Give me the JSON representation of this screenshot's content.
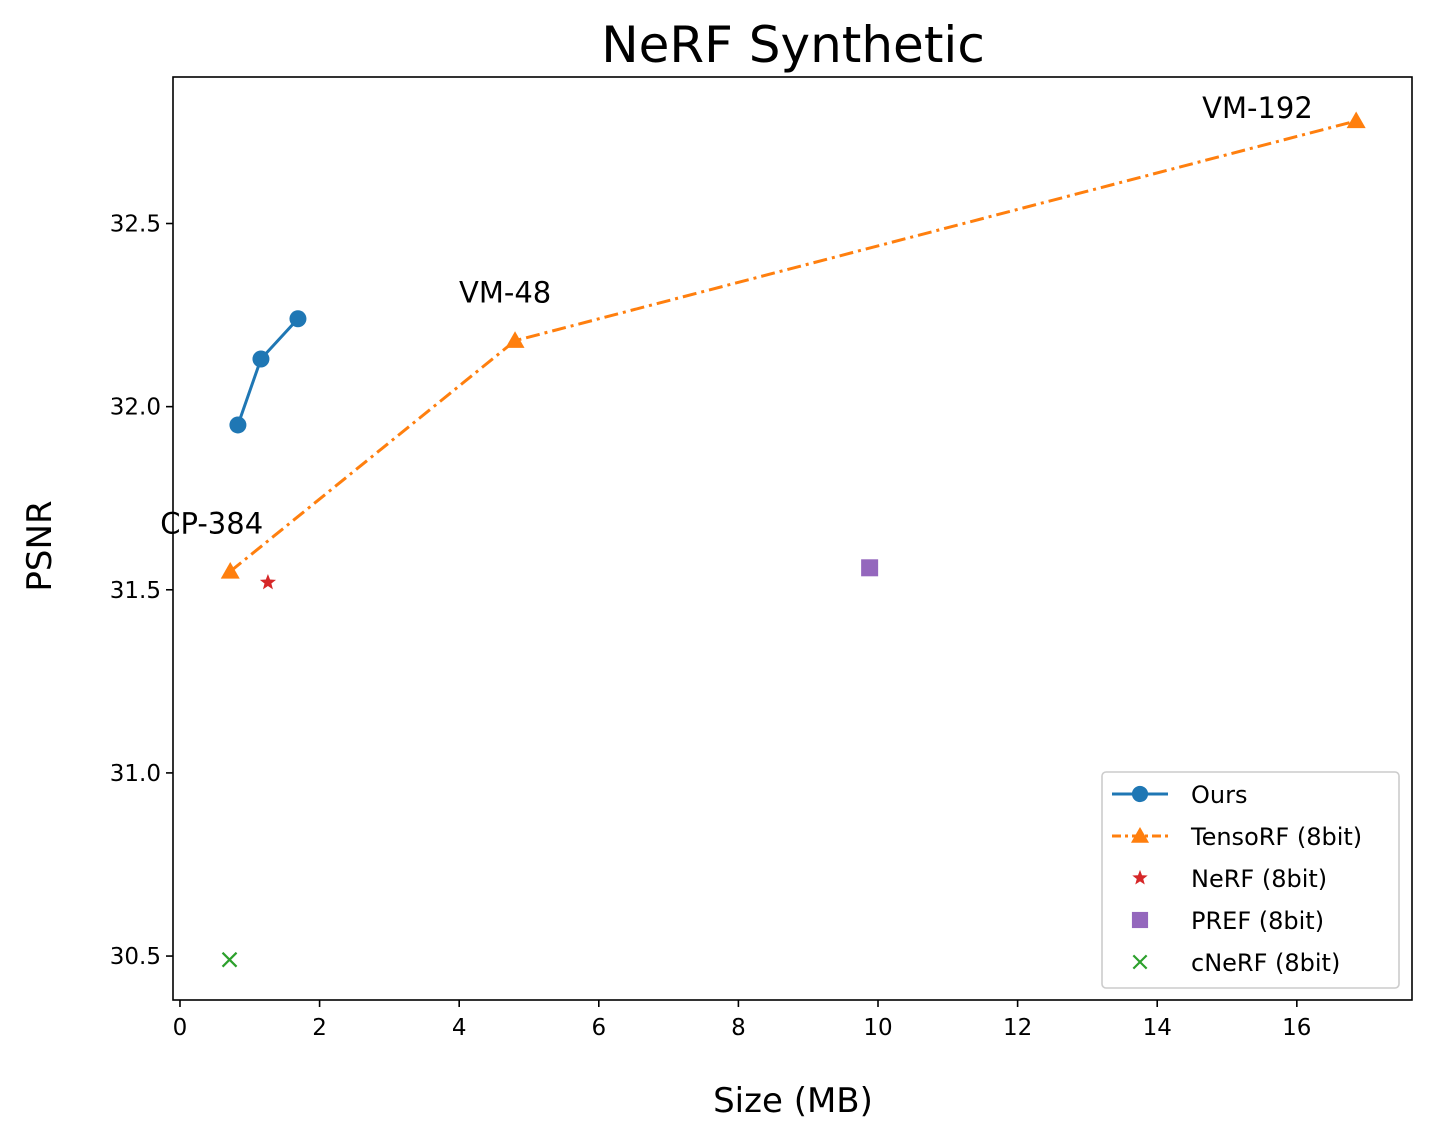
{
  "chart_data": {
    "type": "scatter",
    "title": "NeRF Synthetic",
    "xlabel": "Size (MB)",
    "ylabel": "PSNR",
    "xlim": [
      -0.1,
      17.65
    ],
    "ylim": [
      30.38,
      32.9
    ],
    "xticks": [
      0,
      2,
      4,
      6,
      8,
      10,
      12,
      14,
      16
    ],
    "yticks": [
      30.5,
      31.0,
      31.5,
      32.0,
      32.5
    ],
    "ytick_labels": [
      "30.5",
      "31.0",
      "31.5",
      "32.0",
      "32.5"
    ],
    "grid": false,
    "legend_position": "lower right",
    "series": [
      {
        "name": "Ours",
        "color": "#1f77b4",
        "marker": "circle",
        "line": "solid",
        "points": [
          [
            0.83,
            31.95
          ],
          [
            1.16,
            32.13
          ],
          [
            1.69,
            32.24
          ]
        ]
      },
      {
        "name": "TensoRF (8bit)",
        "color": "#ff7f0e",
        "marker": "triangle",
        "line": "dashdot",
        "points": [
          [
            0.72,
            31.55
          ],
          [
            4.8,
            32.18
          ],
          [
            16.85,
            32.78
          ]
        ]
      },
      {
        "name": "NeRF (8bit)",
        "color": "#d62728",
        "marker": "star",
        "line": "none",
        "points": [
          [
            1.26,
            31.52
          ]
        ]
      },
      {
        "name": "PREF (8bit)",
        "color": "#9467bd",
        "marker": "square",
        "line": "none",
        "points": [
          [
            9.88,
            31.56
          ]
        ]
      },
      {
        "name": "cNeRF (8bit)",
        "color": "#2ca02c",
        "marker": "x",
        "line": "none",
        "points": [
          [
            0.71,
            30.49
          ]
        ]
      }
    ],
    "annotations": [
      {
        "text": "CP-384",
        "x": 0.72,
        "y": 31.55
      },
      {
        "text": "VM-48",
        "x": 4.8,
        "y": 32.18
      },
      {
        "text": "VM-192",
        "x": 16.85,
        "y": 32.78
      }
    ]
  }
}
